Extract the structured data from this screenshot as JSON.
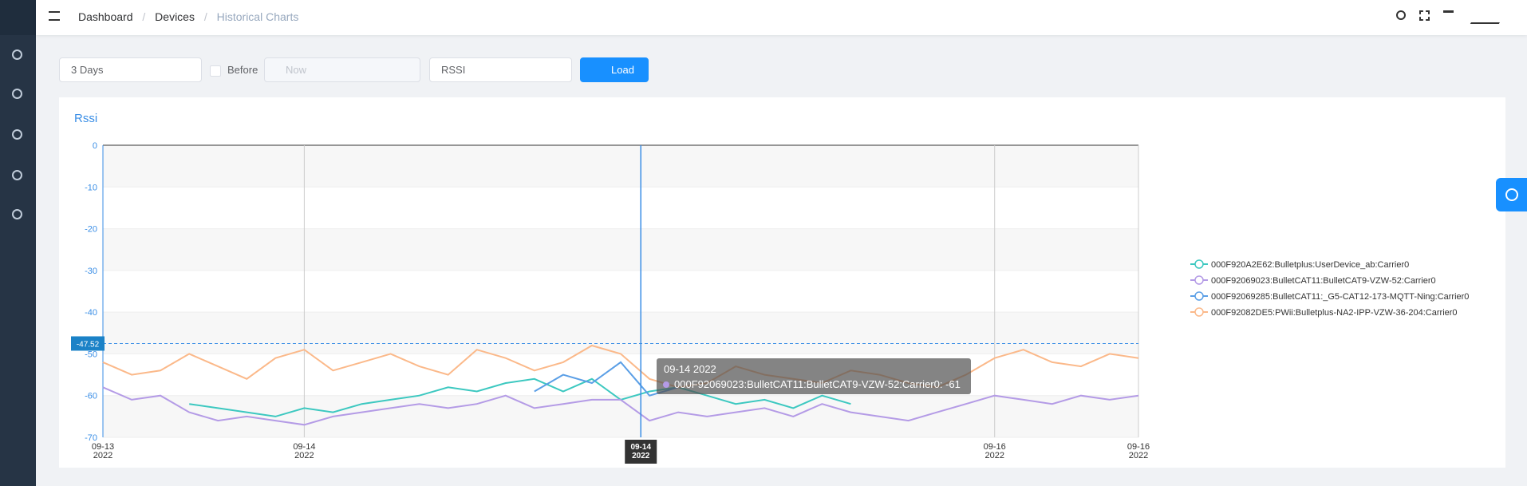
{
  "header": {
    "breadcrumb": [
      "Dashboard",
      "Devices",
      "Historical Charts"
    ],
    "separator": "/"
  },
  "controls": {
    "range": "3 Days",
    "before": "Before",
    "time_placeholder": "Now",
    "metric": "RSSI",
    "button": "Load"
  },
  "chart_data": {
    "type": "line",
    "title": "Rssi",
    "x": [
      0,
      2,
      4,
      6,
      8,
      10,
      12,
      14,
      16,
      18,
      20,
      22,
      24,
      26,
      28,
      30,
      32,
      34,
      36,
      38,
      40,
      42,
      44,
      46,
      48,
      50,
      52,
      54,
      56,
      58,
      60,
      62,
      64,
      66,
      68,
      70,
      72
    ],
    "xlim": [
      0,
      72
    ],
    "xticks": [
      {
        "value": 0,
        "label": "09-13\n2022"
      },
      {
        "value": 14,
        "label": "09-14\n2022"
      },
      {
        "value": 62,
        "label": "09-16\n2022"
      },
      {
        "value": 72,
        "label": "09-16\n2022"
      }
    ],
    "ylim": [
      -70,
      0
    ],
    "yticks": [
      0,
      -10,
      -20,
      -30,
      -40,
      -50,
      -60,
      -70
    ],
    "mark_line": -47.52,
    "axis_pointer": {
      "x": 37.4,
      "label": "09-14\n2022"
    },
    "tooltip": {
      "title": "09-14 2022",
      "text": "000F92069023:BulletCAT11:BulletCAT9-VZW-52:Carrier0: -61"
    },
    "series": [
      {
        "name": "000F920A2E62:Bulletplus:UserDevice_ab:Carrier0",
        "color": "#3cc8c0",
        "values": [
          null,
          null,
          null,
          -62,
          -63,
          -64,
          -65,
          -63,
          -64,
          -62,
          -61,
          -60,
          -58,
          -59,
          -57,
          -56,
          -59,
          -56,
          -61,
          -59,
          -58,
          -60,
          -62,
          -61,
          -63,
          -60,
          -62,
          null,
          null,
          null,
          null,
          null,
          null,
          null,
          null,
          null,
          null
        ]
      },
      {
        "name": "000F92069023:BulletCAT11:BulletCAT9-VZW-52:Carrier0",
        "color": "#b49be6",
        "values": [
          -58,
          -61,
          -60,
          -64,
          -66,
          -65,
          -66,
          -67,
          -65,
          -64,
          -63,
          -62,
          -63,
          -62,
          -60,
          -63,
          -62,
          -61,
          -61,
          -66,
          -64,
          -65,
          -64,
          -63,
          -65,
          -62,
          -64,
          -65,
          -66,
          -64,
          -62,
          -60,
          -61,
          -62,
          -60,
          -61,
          -60
        ]
      },
      {
        "name": "000F92069285:BulletCAT11:_G5-CAT12-173-MQTT-Ning:Carrier0",
        "color": "#5b9fe6",
        "values": [
          null,
          null,
          null,
          null,
          null,
          null,
          null,
          null,
          null,
          null,
          null,
          null,
          null,
          null,
          null,
          -59,
          -55,
          -57,
          -52,
          -60,
          -58,
          null,
          null,
          null,
          null,
          null,
          null,
          null,
          null,
          null,
          null,
          null,
          null,
          null,
          null,
          null,
          null
        ]
      },
      {
        "name": "000F92082DE5:PWii:Bulletplus-NA2-IPP-VZW-36-204:Carrier0",
        "color": "#fbb98a",
        "values": [
          -52,
          -55,
          -54,
          -50,
          -53,
          -56,
          -51,
          -49,
          -54,
          -52,
          -50,
          -53,
          -55,
          -49,
          -51,
          -54,
          -52,
          -48,
          -50,
          -56,
          -58,
          -57,
          -53,
          -55,
          -56,
          -57,
          -54,
          -55,
          -57,
          -58,
          -55,
          -51,
          -49,
          -52,
          -53,
          -50,
          -51
        ]
      }
    ]
  }
}
